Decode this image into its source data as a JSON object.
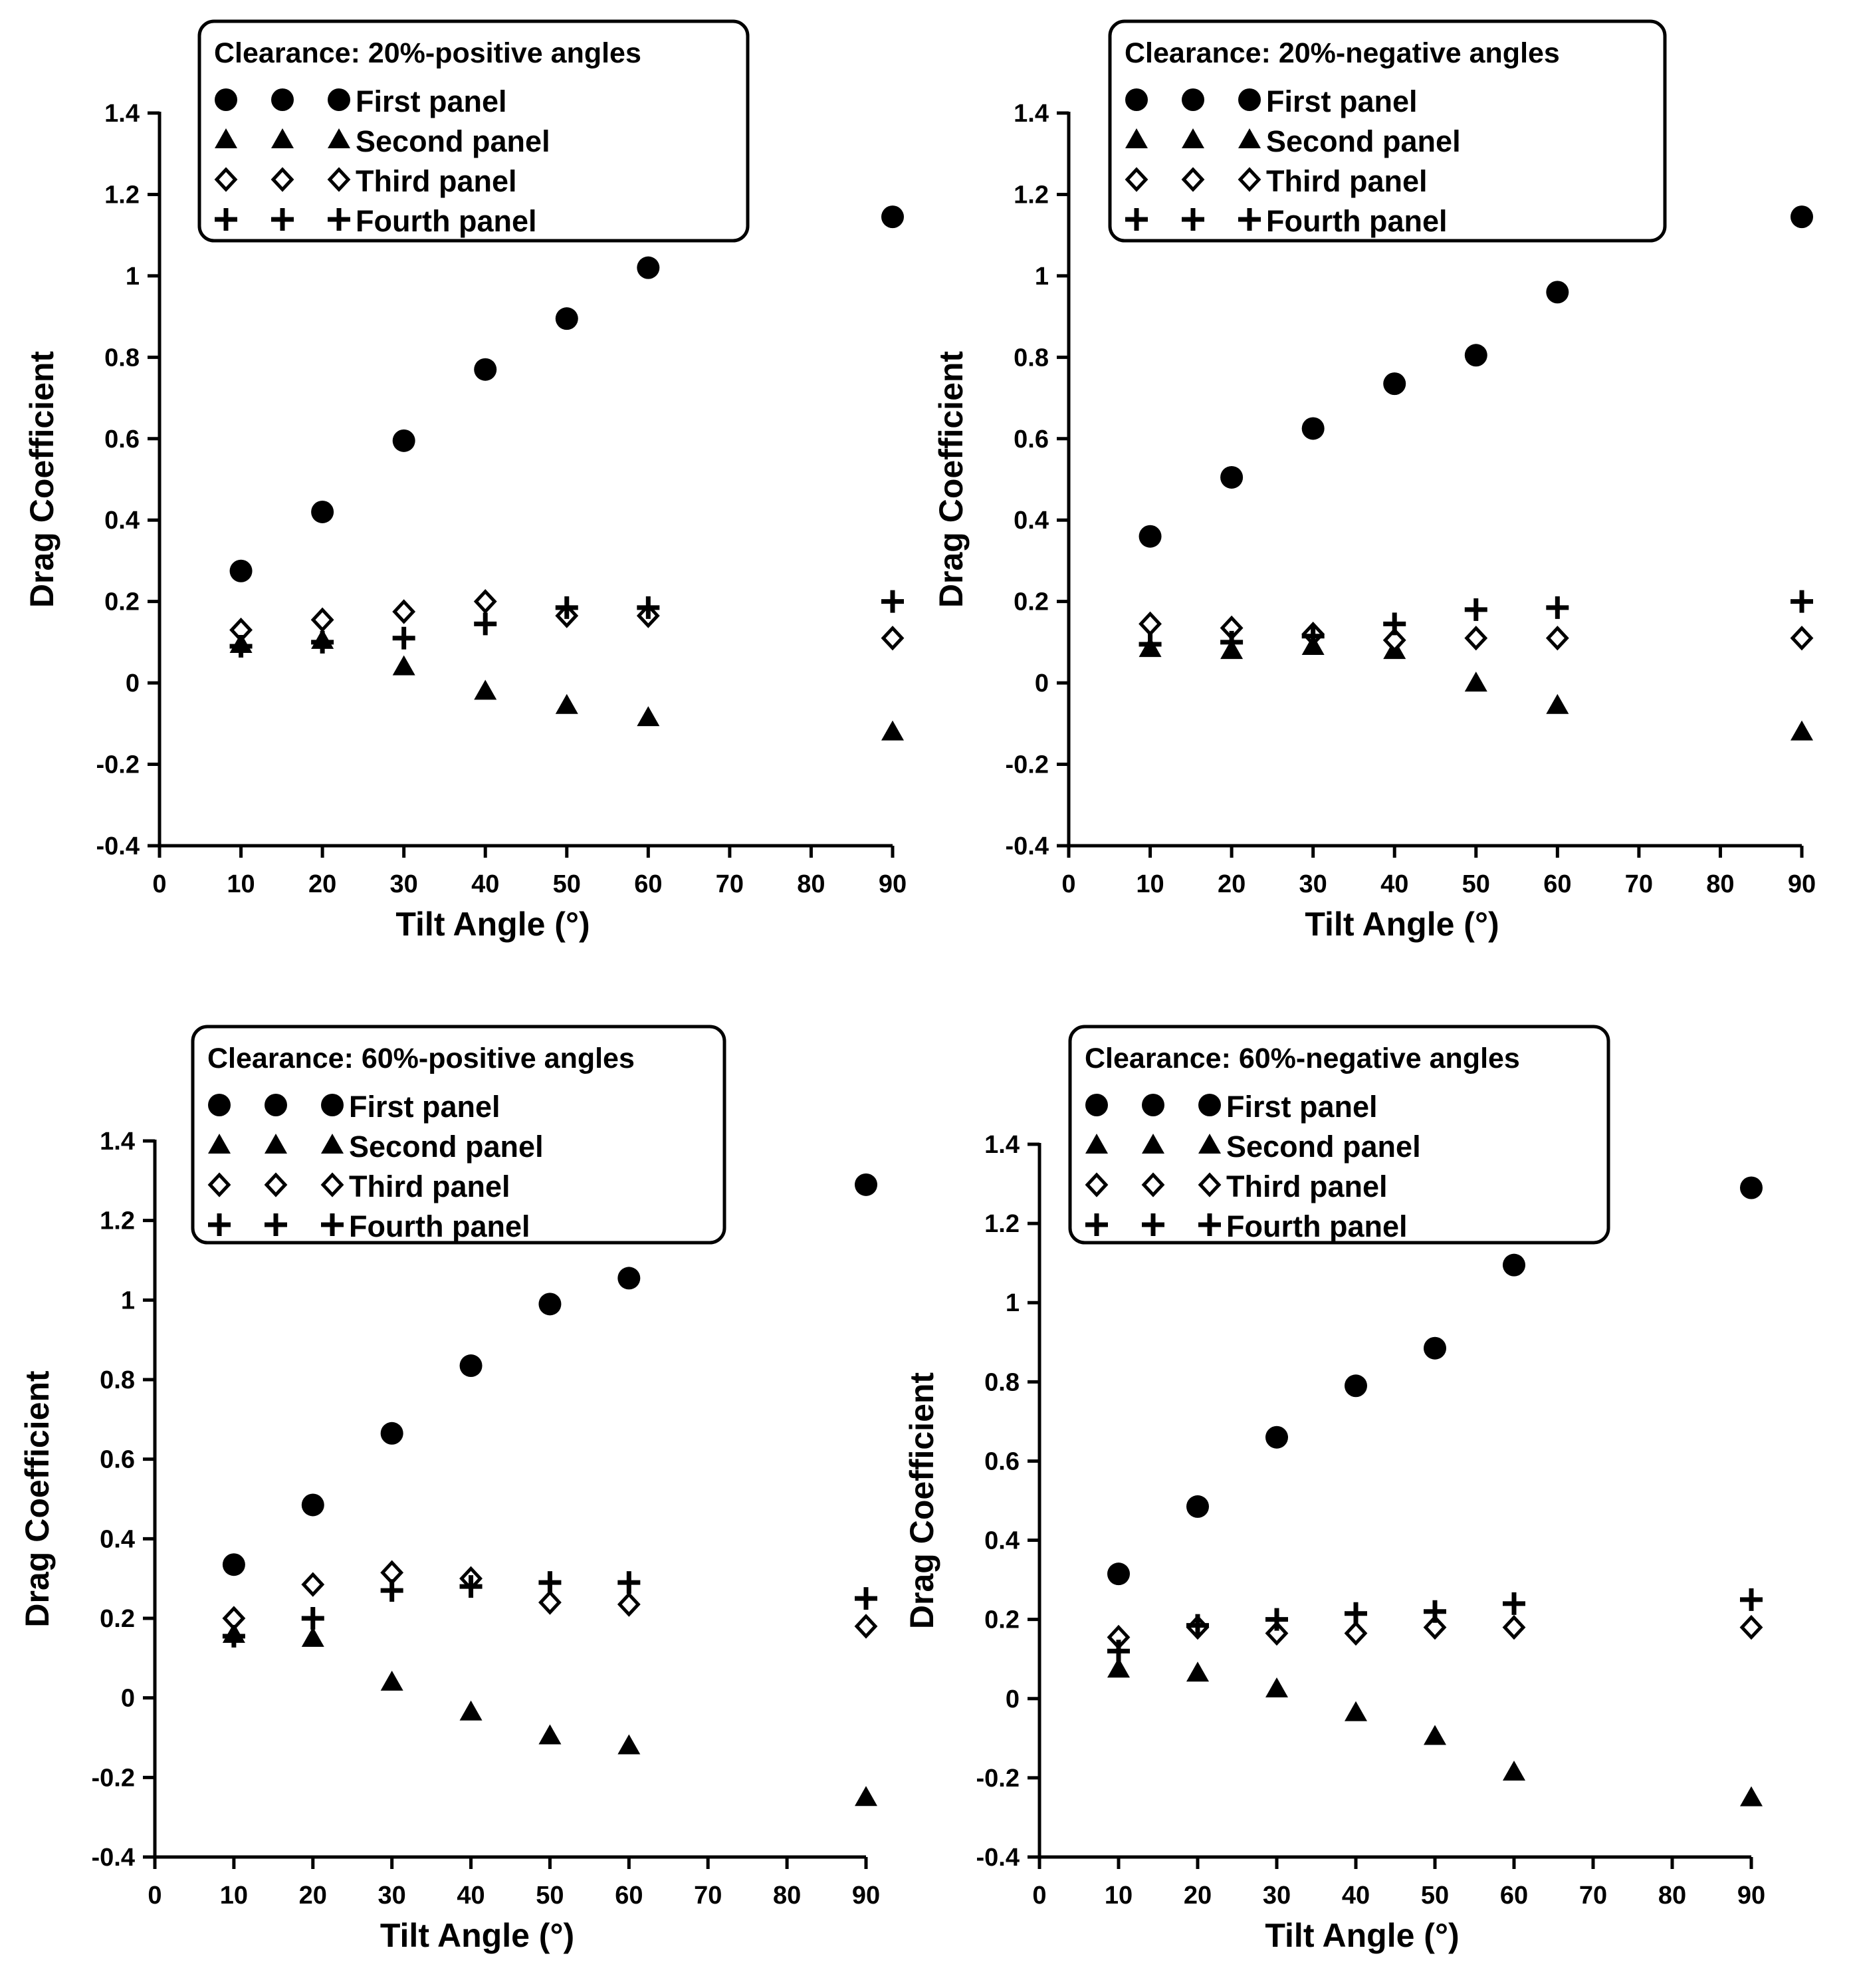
{
  "chart_data": [
    {
      "type": "scatter",
      "title": "Clearance: 20%-positive angles",
      "xlabel": "Tilt Angle (°)",
      "ylabel": "Drag Coefficient",
      "xlim": [
        0,
        90
      ],
      "ylim": [
        -0.4,
        1.4
      ],
      "x_ticks": [
        "0",
        "10",
        "20",
        "30",
        "40",
        "50",
        "60",
        "70",
        "80",
        "90"
      ],
      "y_ticks": [
        "-0.4",
        "-0.2",
        "0",
        "0.2",
        "0.4",
        "0.6",
        "0.8",
        "1",
        "1.2",
        "1.4"
      ],
      "x": [
        10,
        20,
        30,
        40,
        50,
        60,
        90
      ],
      "legend_position": "top",
      "series": [
        {
          "name": "First panel",
          "marker": "circle",
          "values": [
            0.275,
            0.42,
            0.595,
            0.77,
            0.895,
            1.02,
            1.145
          ]
        },
        {
          "name": "Second panel",
          "marker": "triangle",
          "values": [
            0.095,
            0.105,
            0.04,
            -0.02,
            -0.055,
            -0.085,
            -0.12
          ]
        },
        {
          "name": "Third panel",
          "marker": "diamond",
          "values": [
            0.13,
            0.155,
            0.175,
            0.2,
            0.165,
            0.165,
            0.11
          ]
        },
        {
          "name": "Fourth panel",
          "marker": "plus",
          "values": [
            0.09,
            0.1,
            0.11,
            0.145,
            0.185,
            0.185,
            0.2
          ]
        }
      ]
    },
    {
      "type": "scatter",
      "title": "Clearance: 20%-negative angles",
      "xlabel": "Tilt Angle (°)",
      "ylabel": "Drag Coefficient",
      "xlim": [
        0,
        90
      ],
      "ylim": [
        -0.4,
        1.4
      ],
      "x_ticks": [
        "0",
        "10",
        "20",
        "30",
        "40",
        "50",
        "60",
        "70",
        "80",
        "90"
      ],
      "y_ticks": [
        "-0.4",
        "-0.2",
        "0",
        "0.2",
        "0.4",
        "0.6",
        "0.8",
        "1",
        "1.2",
        "1.4"
      ],
      "x": [
        10,
        20,
        30,
        40,
        50,
        60,
        90
      ],
      "legend_position": "top",
      "series": [
        {
          "name": "First panel",
          "marker": "circle",
          "values": [
            0.36,
            0.505,
            0.625,
            0.735,
            0.805,
            0.96,
            1.145
          ]
        },
        {
          "name": "Second panel",
          "marker": "triangle",
          "values": [
            0.085,
            0.08,
            0.09,
            0.08,
            0.0,
            -0.055,
            -0.12
          ]
        },
        {
          "name": "Third panel",
          "marker": "diamond",
          "values": [
            0.145,
            0.135,
            0.12,
            0.105,
            0.11,
            0.11,
            0.11
          ]
        },
        {
          "name": "Fourth panel",
          "marker": "plus",
          "values": [
            0.095,
            0.1,
            0.115,
            0.145,
            0.18,
            0.185,
            0.2
          ]
        }
      ]
    },
    {
      "type": "scatter",
      "title": "Clearance: 60%-positive angles",
      "xlabel": "Tilt Angle (°)",
      "ylabel": "Drag Coefficient",
      "xlim": [
        0,
        90
      ],
      "ylim": [
        -0.4,
        1.4
      ],
      "x_ticks": [
        "0",
        "10",
        "20",
        "30",
        "40",
        "50",
        "60",
        "70",
        "80",
        "90"
      ],
      "y_ticks": [
        "-0.4",
        "-0.2",
        "0",
        "0.2",
        "0.4",
        "0.6",
        "0.8",
        "1",
        "1.2",
        "1.4"
      ],
      "x": [
        10,
        20,
        30,
        40,
        50,
        60,
        90
      ],
      "legend_position": "top",
      "series": [
        {
          "name": "First panel",
          "marker": "circle",
          "values": [
            0.335,
            0.485,
            0.665,
            0.835,
            0.99,
            1.055,
            1.29
          ]
        },
        {
          "name": "Second panel",
          "marker": "triangle",
          "values": [
            0.16,
            0.15,
            0.04,
            -0.035,
            -0.095,
            -0.12,
            -0.25
          ]
        },
        {
          "name": "Third panel",
          "marker": "diamond",
          "values": [
            0.2,
            0.285,
            0.315,
            0.3,
            0.24,
            0.235,
            0.18
          ]
        },
        {
          "name": "Fourth panel",
          "marker": "plus",
          "values": [
            0.155,
            0.2,
            0.27,
            0.28,
            0.29,
            0.29,
            0.25
          ]
        }
      ]
    },
    {
      "type": "scatter",
      "title": "Clearance: 60%-negative angles",
      "xlabel": "Tilt Angle (°)",
      "ylabel": "Drag Coefficient",
      "xlim": [
        0,
        90
      ],
      "ylim": [
        -0.4,
        1.4
      ],
      "x_ticks": [
        "0",
        "10",
        "20",
        "30",
        "40",
        "50",
        "60",
        "70",
        "80",
        "90"
      ],
      "y_ticks": [
        "-0.4",
        "-0.2",
        "0",
        "0.2",
        "0.4",
        "0.6",
        "0.8",
        "1",
        "1.2",
        "1.4"
      ],
      "x": [
        10,
        20,
        30,
        40,
        50,
        60,
        90
      ],
      "legend_position": "top",
      "series": [
        {
          "name": "First panel",
          "marker": "circle",
          "values": [
            0.315,
            0.485,
            0.66,
            0.79,
            0.885,
            1.095,
            1.29
          ]
        },
        {
          "name": "Second panel",
          "marker": "triangle",
          "values": [
            0.075,
            0.065,
            0.025,
            -0.035,
            -0.095,
            -0.185,
            -0.25
          ]
        },
        {
          "name": "Third panel",
          "marker": "diamond",
          "values": [
            0.155,
            0.18,
            0.165,
            0.165,
            0.18,
            0.18,
            0.18
          ]
        },
        {
          "name": "Fourth panel",
          "marker": "plus",
          "values": [
            0.12,
            0.185,
            0.2,
            0.215,
            0.22,
            0.24,
            0.25
          ]
        }
      ]
    }
  ]
}
